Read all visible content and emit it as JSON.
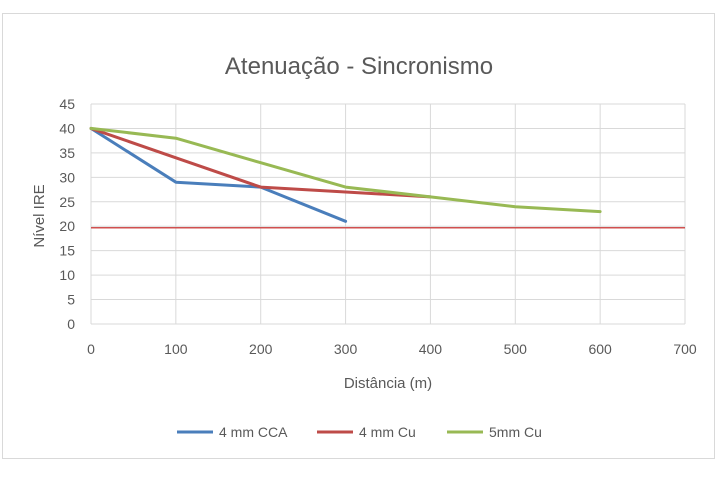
{
  "chart_data": {
    "type": "line",
    "title": "Atenuação - Sincronismo",
    "xlabel": "Distância (m)",
    "ylabel": "Nível IRE",
    "xlim": [
      0,
      700
    ],
    "ylim": [
      0,
      45
    ],
    "x_ticks": [
      0,
      100,
      200,
      300,
      400,
      500,
      600,
      700
    ],
    "y_ticks": [
      0,
      5,
      10,
      15,
      20,
      25,
      30,
      35,
      40,
      45
    ],
    "grid": true,
    "legend_position": "bottom",
    "series": [
      {
        "name": "4 mm CCA",
        "color": "#4a7ebb",
        "x": [
          0,
          100,
          200,
          300
        ],
        "y": [
          40,
          29,
          28,
          21
        ]
      },
      {
        "name": "4 mm Cu",
        "color": "#be4b48",
        "x": [
          0,
          100,
          200,
          300,
          400
        ],
        "y": [
          40,
          34,
          28,
          27,
          26
        ]
      },
      {
        "name": "5mm Cu",
        "color": "#98b954",
        "x": [
          0,
          100,
          200,
          300,
          400,
          500,
          600
        ],
        "y": [
          40,
          38,
          33,
          28,
          26,
          24,
          23
        ]
      }
    ],
    "reference_line": {
      "y": 19.7,
      "color": "#d0504f"
    }
  }
}
